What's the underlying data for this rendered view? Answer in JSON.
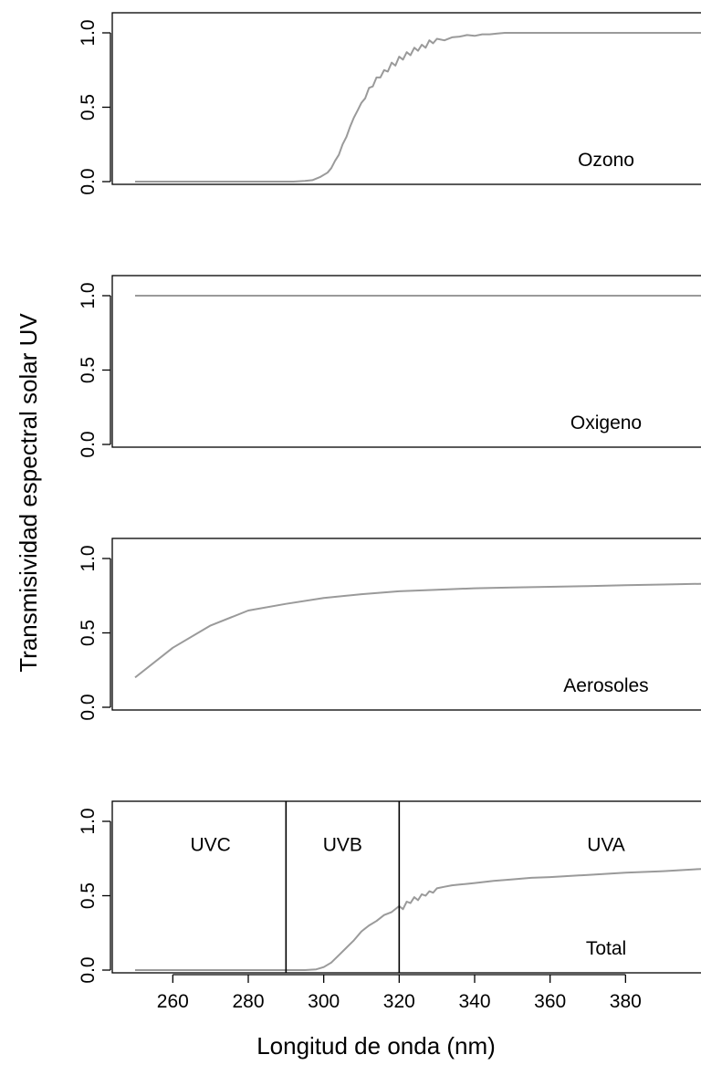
{
  "chart_data": {
    "type": "line",
    "ylabel": "Transmisividad espectral solar UV",
    "xlabel": "Longitud de onda (nm)",
    "xlim": [
      250,
      400
    ],
    "x_ticks": [
      260,
      280,
      300,
      320,
      340,
      360,
      380
    ],
    "y_ticks": [
      "0.0",
      "0.5",
      "1.0"
    ],
    "ylim": [
      0,
      1.1
    ],
    "series_color": "#9a9a9a",
    "panels": [
      {
        "label": "Ozono",
        "x": [
          250,
          280,
          292,
          295,
          297,
          299,
          301,
          302,
          303,
          304,
          305,
          306,
          307,
          308,
          309,
          310,
          311,
          312,
          313,
          314,
          315,
          316,
          317,
          318,
          319,
          320,
          321,
          322,
          323,
          324,
          325,
          326,
          327,
          328,
          329,
          330,
          332,
          334,
          336,
          338,
          340,
          342,
          344,
          346,
          348,
          350,
          360,
          380,
          400
        ],
        "y": [
          0.0,
          0.0,
          0.0,
          0.005,
          0.01,
          0.03,
          0.06,
          0.09,
          0.14,
          0.18,
          0.25,
          0.3,
          0.37,
          0.43,
          0.48,
          0.53,
          0.56,
          0.63,
          0.64,
          0.7,
          0.7,
          0.75,
          0.74,
          0.8,
          0.78,
          0.84,
          0.82,
          0.87,
          0.85,
          0.9,
          0.88,
          0.92,
          0.9,
          0.95,
          0.93,
          0.96,
          0.95,
          0.97,
          0.975,
          0.985,
          0.98,
          0.99,
          0.99,
          0.995,
          1.0,
          1.0,
          1.0,
          1.0,
          1.0
        ]
      },
      {
        "label": "Oxigeno",
        "x": [
          250,
          400
        ],
        "y": [
          1.0,
          1.0
        ]
      },
      {
        "label": "Aerosoles",
        "x": [
          250,
          260,
          270,
          280,
          290,
          300,
          310,
          320,
          330,
          340,
          350,
          360,
          370,
          380,
          390,
          400
        ],
        "y": [
          0.2,
          0.4,
          0.55,
          0.65,
          0.695,
          0.735,
          0.76,
          0.78,
          0.79,
          0.8,
          0.805,
          0.81,
          0.815,
          0.82,
          0.825,
          0.83
        ]
      },
      {
        "label": "Total",
        "x": [
          250,
          280,
          290,
          295,
          298,
          300,
          302,
          304,
          306,
          308,
          310,
          312,
          314,
          316,
          318,
          320,
          321,
          322,
          323,
          324,
          325,
          326,
          327,
          328,
          329,
          330,
          332,
          334,
          336,
          338,
          340,
          345,
          350,
          355,
          360,
          370,
          380,
          390,
          400
        ],
        "y": [
          0.0,
          0.0,
          0.0,
          0.0,
          0.005,
          0.02,
          0.05,
          0.1,
          0.15,
          0.2,
          0.26,
          0.3,
          0.33,
          0.37,
          0.39,
          0.43,
          0.41,
          0.46,
          0.45,
          0.49,
          0.47,
          0.51,
          0.5,
          0.53,
          0.52,
          0.55,
          0.56,
          0.57,
          0.575,
          0.58,
          0.585,
          0.6,
          0.61,
          0.62,
          0.625,
          0.64,
          0.655,
          0.665,
          0.68
        ]
      }
    ],
    "bands": [
      {
        "name": "UVC",
        "from": 250,
        "to": 290
      },
      {
        "name": "UVB",
        "from": 290,
        "to": 320
      },
      {
        "name": "UVA",
        "from": 320,
        "to": 400
      }
    ],
    "band_label_y": 0.85
  }
}
